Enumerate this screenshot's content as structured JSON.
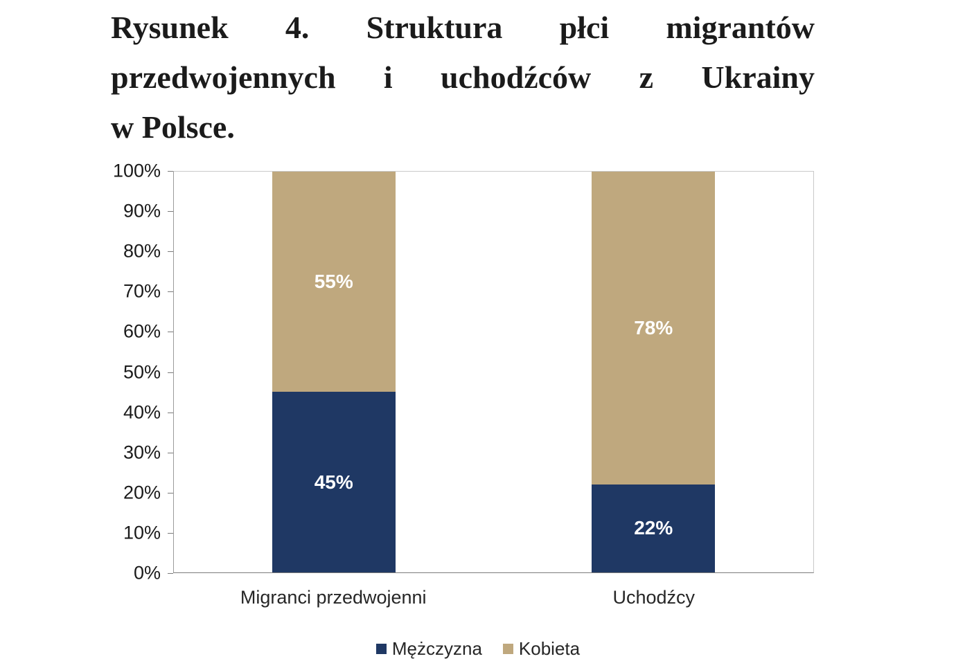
{
  "figure": {
    "title_lines": [
      "Rysunek 4. Struktura płci migrantów",
      "przedwojennych i uchodźców z Ukrainy",
      "w Polsce."
    ]
  },
  "chart_data": {
    "type": "bar",
    "stacked": true,
    "percent": true,
    "categories": [
      "Migranci przedwojenni",
      "Uchodźcy"
    ],
    "series": [
      {
        "name": "Mężczyzna",
        "color": "#1F3864",
        "values": [
          45,
          22
        ],
        "labels": [
          "45%",
          "22%"
        ]
      },
      {
        "name": "Kobieta",
        "color": "#BFA87E",
        "values": [
          55,
          78
        ],
        "labels": [
          "55%",
          "78%"
        ]
      }
    ],
    "y_ticks": [
      "0%",
      "10%",
      "20%",
      "30%",
      "40%",
      "50%",
      "60%",
      "70%",
      "80%",
      "90%",
      "100%"
    ],
    "ylim": [
      0,
      100
    ],
    "grid": false,
    "legend_position": "bottom",
    "data_label_color": "#FFFFFF"
  }
}
